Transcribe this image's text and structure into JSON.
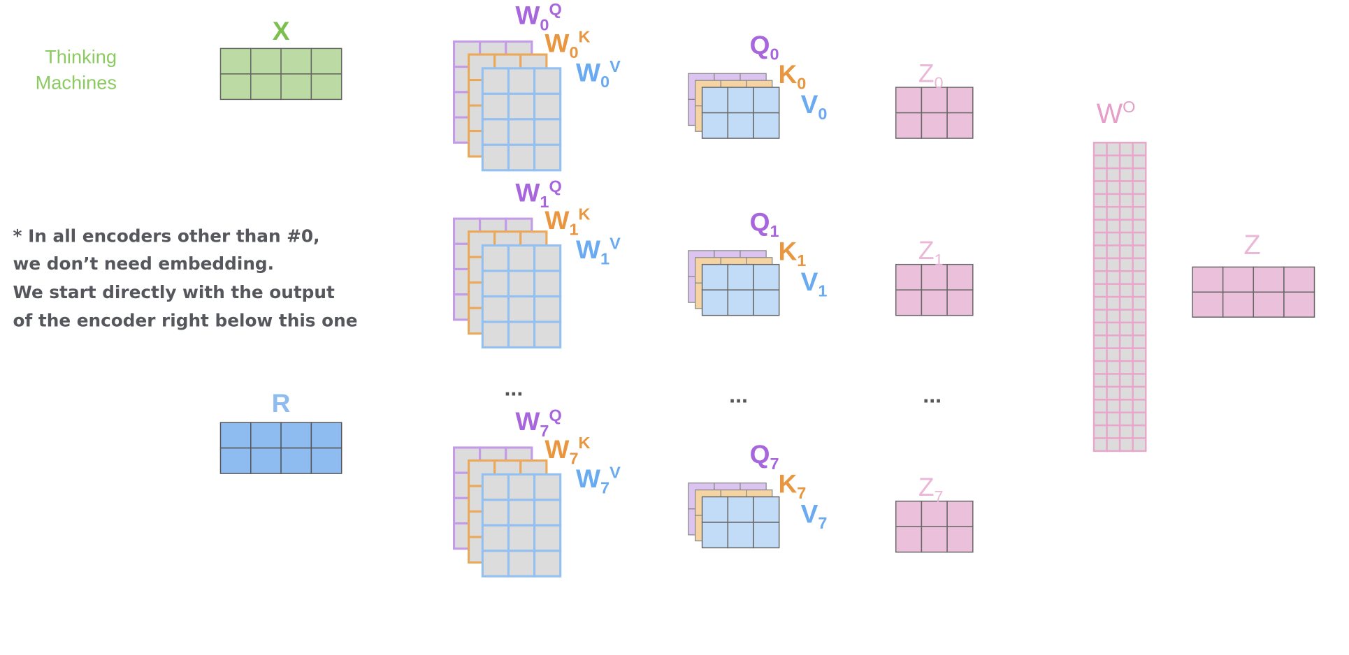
{
  "brand": {
    "line1": "Thinking",
    "line2": "Machines"
  },
  "note": {
    "lines": [
      "* In all encoders other than #0,",
      "we don’t need embedding.",
      "We start directly with the output",
      "of the encoder right below this one"
    ]
  },
  "inputs": {
    "x_label": "X",
    "r_label": "R"
  },
  "heads": [
    {
      "index": "0",
      "w": "W",
      "q": "Q",
      "k": "K",
      "v": "V",
      "z": "Z"
    },
    {
      "index": "1",
      "w": "W",
      "q": "Q",
      "k": "K",
      "v": "V",
      "z": "Z"
    },
    {
      "index": "7",
      "w": "W",
      "q": "Q",
      "k": "K",
      "v": "V",
      "z": "Z"
    }
  ],
  "ellipsis": "...",
  "output_weights": {
    "base": "W",
    "sup": "O"
  },
  "output": {
    "label": "Z"
  },
  "colors": {
    "green": "#7bbf4e",
    "green_fill": "#bcdba4",
    "purple": "#a766dc",
    "purple_fill": "#dcc4f0",
    "purple_border": "#c39be6",
    "orange": "#e8963f",
    "orange_fill": "#f5d3a3",
    "orange_border": "#eaa85a",
    "blue": "#6aaaf0",
    "blue_fill": "#c2dcf7",
    "blue_border": "#93c0f0",
    "r_fill": "#8fbcf0",
    "pink": "#eab8d6",
    "pink_fill": "#eac0da",
    "wo_label": "#e49ec8",
    "wo_border": "#e9a6cb",
    "gray_fill": "#dcdcdc"
  }
}
